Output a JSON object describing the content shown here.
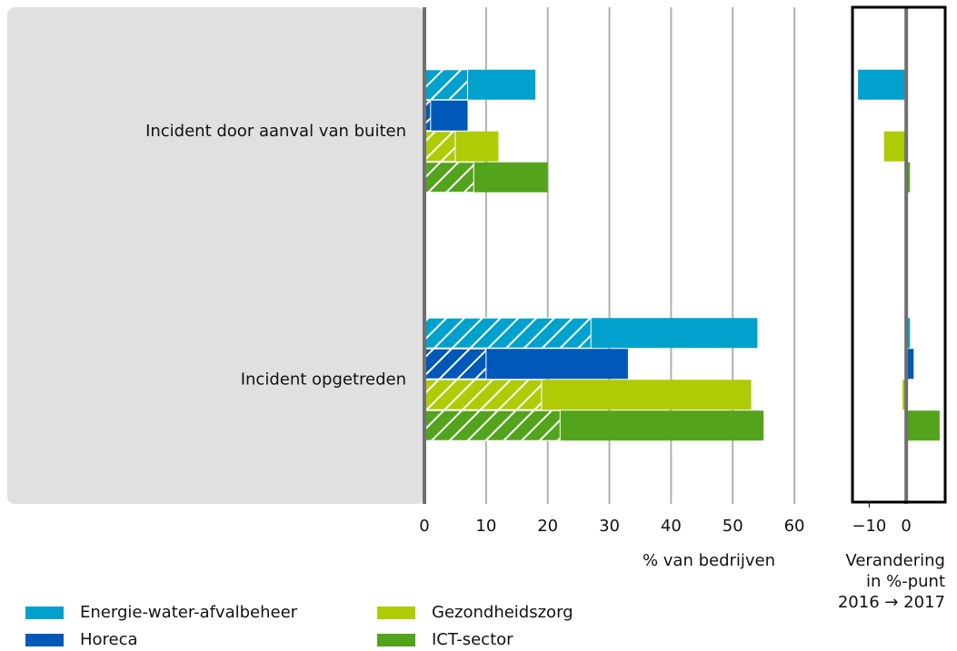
{
  "chart_data": [
    {
      "type": "hbar_hatched",
      "categories": [
        "Incident door aanval van buiten",
        "Incident opgetreden"
      ],
      "series": [
        {
          "name": "Energie-water-afvalbeheer",
          "color": "#00a1cd",
          "values": [
            18,
            54
          ],
          "hatched": [
            7,
            27
          ]
        },
        {
          "name": "Horeca",
          "color": "#0058b8",
          "values": [
            7,
            33
          ],
          "hatched": [
            1,
            10
          ]
        },
        {
          "name": "Gezondheidszorg",
          "color": "#afcb05",
          "values": [
            12,
            53
          ],
          "hatched": [
            5,
            19
          ]
        },
        {
          "name": "ICT-sector",
          "color": "#53a31d",
          "values": [
            20,
            55
          ],
          "hatched": [
            8,
            22
          ]
        }
      ],
      "xlabel": "% van bedrijven",
      "xlim": [
        0,
        65
      ],
      "xticks": [
        0,
        10,
        20,
        30,
        40,
        50,
        60
      ],
      "grid": true
    },
    {
      "type": "hbar",
      "series": [
        {
          "name": "Energie-water-afvalbeheer",
          "color": "#00a1cd",
          "values": [
            -13,
            1
          ]
        },
        {
          "name": "Horeca",
          "color": "#0058b8",
          "values": [
            0,
            2
          ]
        },
        {
          "name": "Gezondheidszorg",
          "color": "#afcb05",
          "values": [
            -6,
            -1
          ]
        },
        {
          "name": "ICT-sector",
          "color": "#53a31d",
          "values": [
            1,
            9
          ]
        }
      ],
      "xlabel": [
        "Verandering",
        "in %-punt",
        "2016 → 2017"
      ],
      "xlim": [
        -14.5,
        10.5
      ],
      "xticks": [
        {
          "value": -10,
          "label": "−10"
        },
        0
      ]
    }
  ]
}
